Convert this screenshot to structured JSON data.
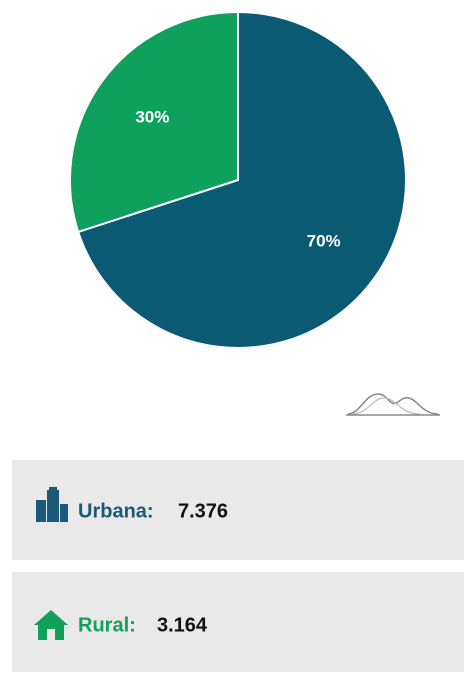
{
  "chart_data": {
    "type": "pie",
    "values": [
      70,
      30
    ],
    "value_labels": [
      "70%",
      "30%"
    ],
    "colors": [
      "#0b5a73",
      "#0fa05d"
    ],
    "start_angle": -90,
    "direction": "clockwise"
  },
  "summary": [
    {
      "label": "Urbana:",
      "value": "7.376",
      "color": "#1a5a78"
    },
    {
      "label": "Rural:",
      "value": "3.164",
      "color": "#12a05a"
    }
  ]
}
